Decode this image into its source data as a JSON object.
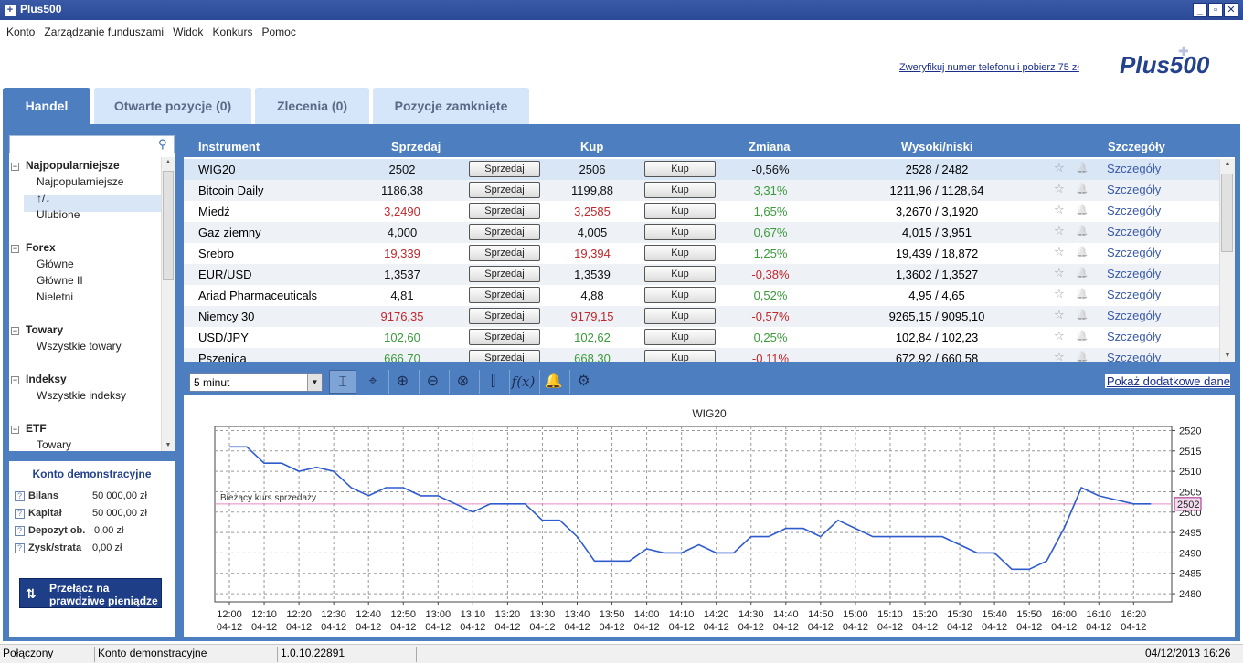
{
  "window": {
    "title": "Plus500",
    "minimize": "_",
    "maximize": "▫",
    "close": "✕"
  },
  "menu": [
    "Konto",
    "Zarządzanie funduszami",
    "Widok",
    "Konkurs",
    "Pomoc"
  ],
  "promo_link": "Zweryfikuj numer telefonu i pobierz 75 zł",
  "logo_text": "Plus500",
  "tabs": [
    {
      "label": "Handel",
      "active": true
    },
    {
      "label": "Otwarte pozycje (0)",
      "active": false
    },
    {
      "label": "Zlecenia (0)",
      "active": false
    },
    {
      "label": "Pozycje zamknięte",
      "active": false
    }
  ],
  "search": {
    "placeholder": "",
    "icon": "search-icon"
  },
  "tree": {
    "groups": [
      {
        "label": "Najpopularniejsze",
        "items": [
          "Najpopularniejsze",
          "↑/↓",
          "Ulubione"
        ]
      },
      {
        "label": "Forex",
        "items": [
          "Główne",
          "Główne II",
          "Nieletni"
        ]
      },
      {
        "label": "Towary",
        "items": [
          "Wszystkie towary"
        ]
      },
      {
        "label": "Indeksy",
        "items": [
          "Wszystkie indeksy"
        ]
      },
      {
        "label": "ETF",
        "items": [
          "Towary"
        ]
      }
    ],
    "selected": "Najpopularniejsze"
  },
  "account": {
    "title": "Konto demonstracyjne",
    "rows": [
      {
        "label": "Bilans",
        "value": "50 000,00 zł"
      },
      {
        "label": "Kapitał",
        "value": "50 000,00 zł"
      },
      {
        "label": "Depozyt ob.",
        "value": "0,00 zł"
      },
      {
        "label": "Zysk/strata",
        "value": "0,00 zł"
      }
    ],
    "switch_line1": "Przełącz na",
    "switch_line2": "prawdziwe pieniądze"
  },
  "table": {
    "headers": {
      "instrument": "Instrument",
      "sell": "Sprzedaj",
      "buy": "Kup",
      "change": "Zmiana",
      "highlow": "Wysoki/niski",
      "details": "Szczegóły"
    },
    "sell_button": "Sprzedaj",
    "buy_button": "Kup",
    "details_link": "Szczegóły",
    "rows": [
      {
        "name": "WIG20",
        "sell": "2502",
        "buy": "2506",
        "change": "-0,56%",
        "hl": "2528 / 2482",
        "price_color": "dk",
        "change_color": "dk"
      },
      {
        "name": "Bitcoin Daily",
        "sell": "1186,38",
        "buy": "1199,88",
        "change": "3,31%",
        "hl": "1211,96 / 1128,64",
        "price_color": "dk",
        "change_color": "green"
      },
      {
        "name": "Miedź",
        "sell": "3,2490",
        "buy": "3,2585",
        "change": "1,65%",
        "hl": "3,2670 / 3,1920",
        "price_color": "red",
        "change_color": "green"
      },
      {
        "name": "Gaz ziemny",
        "sell": "4,000",
        "buy": "4,005",
        "change": "0,67%",
        "hl": "4,015 / 3,951",
        "price_color": "dk",
        "change_color": "green"
      },
      {
        "name": "Srebro",
        "sell": "19,339",
        "buy": "19,394",
        "change": "1,25%",
        "hl": "19,439 / 18,872",
        "price_color": "red",
        "change_color": "green"
      },
      {
        "name": "EUR/USD",
        "sell": "1,3537",
        "buy": "1,3539",
        "change": "-0,38%",
        "hl": "1,3602 / 1,3527",
        "price_color": "dk",
        "change_color": "red"
      },
      {
        "name": "Ariad Pharmaceuticals",
        "sell": "4,81",
        "buy": "4,88",
        "change": "0,52%",
        "hl": "4,95 / 4,65",
        "price_color": "dk",
        "change_color": "green"
      },
      {
        "name": "Niemcy 30",
        "sell": "9176,35",
        "buy": "9179,15",
        "change": "-0,57%",
        "hl": "9265,15 / 9095,10",
        "price_color": "red",
        "change_color": "red"
      },
      {
        "name": "USD/JPY",
        "sell": "102,60",
        "buy": "102,62",
        "change": "0,25%",
        "hl": "102,84 / 102,23",
        "price_color": "green",
        "change_color": "green"
      },
      {
        "name": "Pszenica",
        "sell": "666,70",
        "buy": "668,30",
        "change": "-0,11%",
        "hl": "672,92 / 660,58",
        "price_color": "green",
        "change_color": "red"
      }
    ]
  },
  "chart_toolbar": {
    "timeframe": "5 minut",
    "show_more": "Pokaż dodatkowe dane",
    "tools": [
      "crosshair-cursor-icon",
      "target-icon",
      "zoom-in-icon",
      "zoom-out-icon",
      "zoom-reset-icon",
      "candlestick-icon",
      "function-icon",
      "alert-bell-icon",
      "settings-gear-icon"
    ]
  },
  "chart_data": {
    "type": "line",
    "title": "WIG20",
    "annotation": "Bieżący kurs sprzedaży",
    "current_value_label": "2502",
    "current_value": 2502,
    "ylim": [
      2478,
      2521
    ],
    "yticks": [
      2480,
      2485,
      2490,
      2495,
      2500,
      2505,
      2510,
      2515,
      2520
    ],
    "xticks": [
      [
        "12:00",
        "04-12"
      ],
      [
        "12:10",
        "04-12"
      ],
      [
        "12:20",
        "04-12"
      ],
      [
        "12:30",
        "04-12"
      ],
      [
        "12:40",
        "04-12"
      ],
      [
        "12:50",
        "04-12"
      ],
      [
        "13:00",
        "04-12"
      ],
      [
        "13:10",
        "04-12"
      ],
      [
        "13:20",
        "04-12"
      ],
      [
        "13:30",
        "04-12"
      ],
      [
        "13:40",
        "04-12"
      ],
      [
        "13:50",
        "04-12"
      ],
      [
        "14:00",
        "04-12"
      ],
      [
        "14:10",
        "04-12"
      ],
      [
        "14:20",
        "04-12"
      ],
      [
        "14:30",
        "04-12"
      ],
      [
        "14:40",
        "04-12"
      ],
      [
        "14:50",
        "04-12"
      ],
      [
        "15:00",
        "04-12"
      ],
      [
        "15:10",
        "04-12"
      ],
      [
        "15:20",
        "04-12"
      ],
      [
        "15:30",
        "04-12"
      ],
      [
        "15:40",
        "04-12"
      ],
      [
        "15:50",
        "04-12"
      ],
      [
        "16:00",
        "04-12"
      ],
      [
        "16:10",
        "04-12"
      ],
      [
        "16:20",
        "04-12"
      ]
    ],
    "series": [
      {
        "x": [
          "12:00",
          "12:05",
          "12:10",
          "12:15",
          "12:20",
          "12:25",
          "12:30",
          "12:35",
          "12:40",
          "12:45",
          "12:50",
          "12:55",
          "13:00",
          "13:05",
          "13:10",
          "13:15",
          "13:20",
          "13:25",
          "13:30",
          "13:35",
          "13:40",
          "13:45",
          "13:50",
          "13:55",
          "14:00",
          "14:05",
          "14:10",
          "14:15",
          "14:20",
          "14:25",
          "14:30",
          "14:35",
          "14:40",
          "14:45",
          "14:50",
          "14:55",
          "15:00",
          "15:05",
          "15:10",
          "15:15",
          "15:20",
          "15:25",
          "15:30",
          "15:35",
          "15:40",
          "15:45",
          "15:50",
          "15:55",
          "16:00",
          "16:05",
          "16:10",
          "16:15",
          "16:20",
          "16:25"
        ],
        "values": [
          2516,
          2516,
          2512,
          2512,
          2510,
          2511,
          2510,
          2506,
          2504,
          2506,
          2506,
          2504,
          2504,
          2502,
          2500,
          2502,
          2502,
          2502,
          2498,
          2498,
          2494,
          2488,
          2488,
          2488,
          2491,
          2490,
          2490,
          2492,
          2490,
          2490,
          2494,
          2494,
          2496,
          2496,
          2494,
          2498,
          2496,
          2494,
          2494,
          2494,
          2494,
          2494,
          2492,
          2490,
          2490,
          2486,
          2486,
          2488,
          2496,
          2506,
          2504,
          2503,
          2502,
          2502
        ]
      }
    ]
  },
  "status": {
    "connection": "Połączony",
    "account_type": "Konto demonstracyjne",
    "version": "1.0.10.22891",
    "datetime": "04/12/2013 16:26"
  }
}
